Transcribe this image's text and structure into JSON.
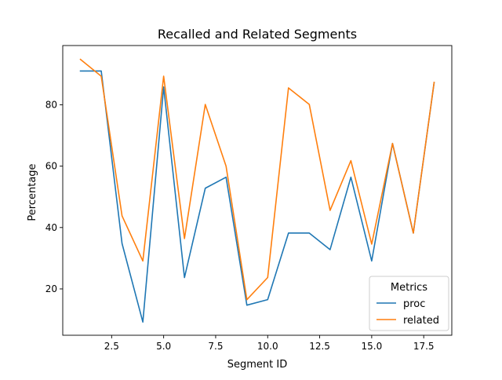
{
  "chart_data": {
    "type": "line",
    "title": "Recalled and Related Segments",
    "xlabel": "Segment ID",
    "ylabel": "Percentage",
    "x": [
      1,
      2,
      3,
      4,
      5,
      6,
      7,
      8,
      9,
      10,
      11,
      12,
      13,
      14,
      15,
      16,
      17,
      18
    ],
    "xlim": [
      0.15,
      18.85
    ],
    "ylim": [
      4.9,
      99.3
    ],
    "xticks": [
      2.5,
      5.0,
      7.5,
      10.0,
      12.5,
      15.0,
      17.5
    ],
    "xtick_labels": [
      "2.5",
      "5.0",
      "7.5",
      "10.0",
      "12.5",
      "15.0",
      "17.5"
    ],
    "yticks": [
      20,
      40,
      60,
      80
    ],
    "ytick_labels": [
      "20",
      "40",
      "60",
      "80"
    ],
    "grid": false,
    "legend": {
      "title": "Metrics",
      "placement": "lower-right"
    },
    "series": [
      {
        "name": "proc",
        "color": "#1f77b4",
        "values": [
          91.0,
          91.0,
          34.8,
          9.2,
          85.8,
          23.7,
          52.8,
          56.4,
          14.7,
          16.5,
          38.2,
          38.2,
          32.8,
          56.4,
          29.1,
          67.4,
          38.2,
          87.2
        ]
      },
      {
        "name": "related",
        "color": "#ff7f0e",
        "values": [
          94.8,
          89.3,
          43.8,
          29.1,
          89.3,
          36.4,
          80.1,
          60.0,
          16.5,
          23.7,
          85.5,
          80.1,
          45.6,
          61.8,
          34.6,
          67.4,
          38.2,
          87.3
        ]
      }
    ]
  }
}
